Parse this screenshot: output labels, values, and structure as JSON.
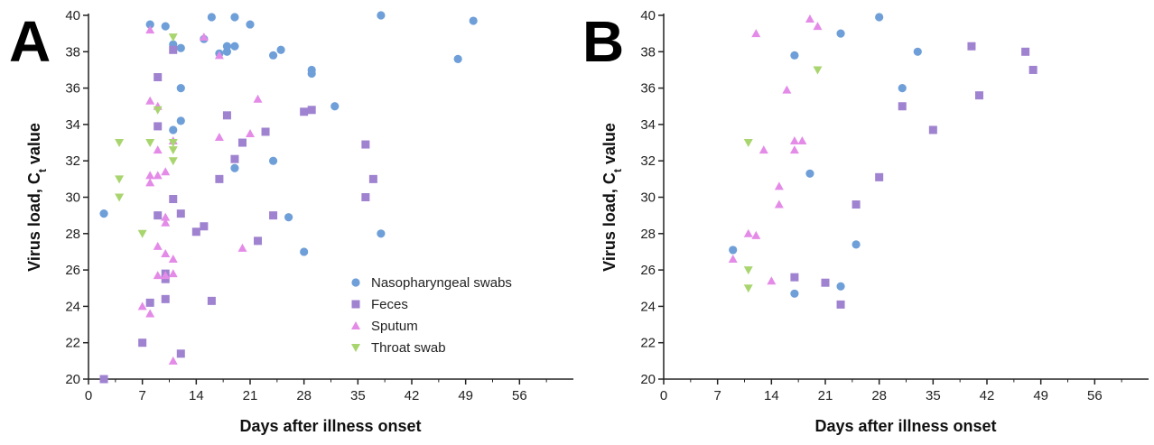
{
  "chart_data": [
    {
      "type": "scatter",
      "panel_label": "A",
      "xlabel": "Days after illness onset",
      "ylabel_main": "Virus load, C",
      "ylabel_sub": "t",
      "ylabel_tail": " value",
      "xlim": [
        0,
        63
      ],
      "ylim": [
        20,
        40
      ],
      "xticks": [
        "0",
        "7",
        "14",
        "21",
        "28",
        "35",
        "42",
        "49",
        "56"
      ],
      "yticks": [
        "20",
        "22",
        "24",
        "26",
        "28",
        "30",
        "32",
        "34",
        "36",
        "38",
        "40"
      ],
      "grid": false,
      "legend_position": "bottom-right",
      "series": [
        {
          "name": "Nasopharyngeal swabs",
          "marker": "circle",
          "color": "#6f9fd8",
          "points": [
            [
              2,
              29.1
            ],
            [
              8,
              39.5
            ],
            [
              10,
              39.4
            ],
            [
              11,
              38.4
            ],
            [
              11,
              33.7
            ],
            [
              12,
              36
            ],
            [
              12,
              34.2
            ],
            [
              12,
              38.2
            ],
            [
              15,
              38.7
            ],
            [
              16,
              39.9
            ],
            [
              17,
              37.9
            ],
            [
              18,
              38
            ],
            [
              18,
              38.3
            ],
            [
              19,
              38.3
            ],
            [
              19,
              39.9
            ],
            [
              19,
              31.6
            ],
            [
              21,
              39.5
            ],
            [
              24,
              37.8
            ],
            [
              24,
              32
            ],
            [
              25,
              38.1
            ],
            [
              26,
              28.9
            ],
            [
              28,
              27
            ],
            [
              29,
              37
            ],
            [
              29,
              36.8
            ],
            [
              32,
              35
            ],
            [
              38,
              40
            ],
            [
              38,
              28
            ],
            [
              48,
              37.6
            ],
            [
              50,
              39.7
            ]
          ]
        },
        {
          "name": "Feces",
          "marker": "square",
          "color": "#9f82d0",
          "points": [
            [
              2,
              20
            ],
            [
              7,
              22
            ],
            [
              8,
              24.2
            ],
            [
              9,
              36.6
            ],
            [
              9,
              33.9
            ],
            [
              9,
              29
            ],
            [
              10,
              24.4
            ],
            [
              10,
              25.5
            ],
            [
              10,
              25.8
            ],
            [
              11,
              38.1
            ],
            [
              11,
              29.9
            ],
            [
              12,
              29.1
            ],
            [
              12,
              21.4
            ],
            [
              14,
              28.1
            ],
            [
              15,
              28.4
            ],
            [
              16,
              24.3
            ],
            [
              17,
              31
            ],
            [
              18,
              34.5
            ],
            [
              19,
              32.1
            ],
            [
              20,
              33
            ],
            [
              22,
              27.6
            ],
            [
              23,
              33.6
            ],
            [
              24,
              29
            ],
            [
              28,
              34.7
            ],
            [
              29,
              34.8
            ],
            [
              36,
              32.9
            ],
            [
              36,
              30
            ],
            [
              37,
              31
            ]
          ]
        },
        {
          "name": "Sputum",
          "marker": "triangle-up",
          "color": "#e48be8",
          "points": [
            [
              7,
              24
            ],
            [
              8,
              39.2
            ],
            [
              8,
              35.3
            ],
            [
              8,
              31.2
            ],
            [
              8,
              30.8
            ],
            [
              8,
              23.6
            ],
            [
              9,
              35
            ],
            [
              9,
              32.6
            ],
            [
              9,
              31.2
            ],
            [
              9,
              27.3
            ],
            [
              9,
              25.7
            ],
            [
              10,
              31.4
            ],
            [
              10,
              28.9
            ],
            [
              10,
              28.6
            ],
            [
              10,
              26.9
            ],
            [
              10,
              25.7
            ],
            [
              11,
              33.1
            ],
            [
              11,
              26.6
            ],
            [
              11,
              25.8
            ],
            [
              11,
              21
            ],
            [
              15,
              38.8
            ],
            [
              17,
              37.8
            ],
            [
              17,
              33.3
            ],
            [
              20,
              27.2
            ],
            [
              21,
              33.5
            ],
            [
              22,
              35.4
            ]
          ]
        },
        {
          "name": "Throat swab",
          "marker": "triangle-down",
          "color": "#a9d56f",
          "points": [
            [
              4,
              33
            ],
            [
              4,
              31
            ],
            [
              4,
              30
            ],
            [
              7,
              28
            ],
            [
              8,
              33
            ],
            [
              9,
              34.8
            ],
            [
              11,
              38.8
            ],
            [
              11,
              33
            ],
            [
              11,
              32.6
            ],
            [
              11,
              32
            ]
          ]
        }
      ]
    },
    {
      "type": "scatter",
      "panel_label": "B",
      "xlabel": "Days after illness onset",
      "ylabel_main": "Virus load, C",
      "ylabel_sub": "t",
      "ylabel_tail": " value",
      "xlim": [
        0,
        63
      ],
      "ylim": [
        20,
        40
      ],
      "xticks": [
        "0",
        "7",
        "14",
        "21",
        "28",
        "35",
        "42",
        "49",
        "56"
      ],
      "yticks": [
        "20",
        "22",
        "24",
        "26",
        "28",
        "30",
        "32",
        "34",
        "36",
        "38",
        "40"
      ],
      "grid": false,
      "series": [
        {
          "name": "Nasopharyngeal swabs",
          "marker": "circle",
          "color": "#6f9fd8",
          "points": [
            [
              9,
              27.1
            ],
            [
              17,
              37.8
            ],
            [
              17,
              24.7
            ],
            [
              19,
              31.3
            ],
            [
              23,
              39
            ],
            [
              23,
              25.1
            ],
            [
              25,
              27.4
            ],
            [
              28,
              39.9
            ],
            [
              31,
              36
            ],
            [
              33,
              38
            ]
          ]
        },
        {
          "name": "Feces",
          "marker": "square",
          "color": "#9f82d0",
          "points": [
            [
              17,
              25.6
            ],
            [
              21,
              25.3
            ],
            [
              23,
              24.1
            ],
            [
              25,
              29.6
            ],
            [
              28,
              31.1
            ],
            [
              31,
              35
            ],
            [
              35,
              33.7
            ],
            [
              40,
              38.3
            ],
            [
              41,
              35.6
            ],
            [
              47,
              38
            ],
            [
              48,
              37
            ]
          ]
        },
        {
          "name": "Sputum",
          "marker": "triangle-up",
          "color": "#e48be8",
          "points": [
            [
              9,
              26.6
            ],
            [
              11,
              28
            ],
            [
              12,
              39
            ],
            [
              12,
              27.9
            ],
            [
              13,
              32.6
            ],
            [
              14,
              25.4
            ],
            [
              15,
              30.6
            ],
            [
              15,
              29.6
            ],
            [
              16,
              35.9
            ],
            [
              17,
              33.1
            ],
            [
              17,
              32.6
            ],
            [
              18,
              33.1
            ],
            [
              19,
              39.8
            ],
            [
              20,
              39.4
            ]
          ]
        },
        {
          "name": "Throat swab",
          "marker": "triangle-down",
          "color": "#a9d56f",
          "points": [
            [
              11,
              33
            ],
            [
              11,
              26
            ],
            [
              11,
              25
            ],
            [
              20,
              37
            ]
          ]
        }
      ]
    }
  ]
}
